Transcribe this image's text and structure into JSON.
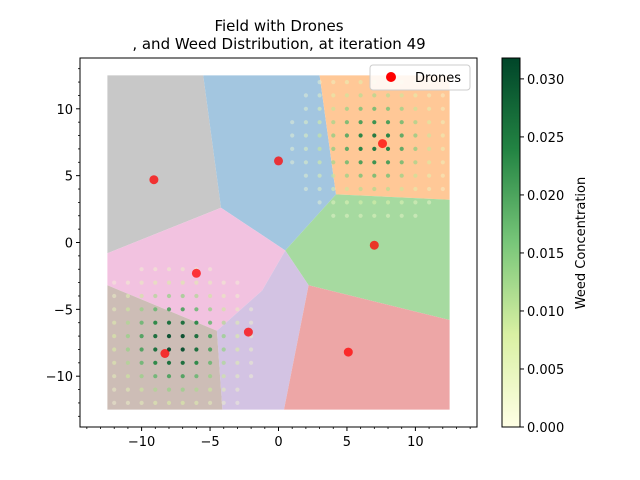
{
  "chart_data": {
    "type": "scatter",
    "title_line1": "Field with Drones",
    "title_line2": ", and Weed Distribution, at iteration 49",
    "xlabel": "",
    "ylabel": "",
    "xlim": [
      -14.5,
      14.5
    ],
    "ylim": [
      -13.8,
      13.8
    ],
    "x_ticks": [
      -10,
      -5,
      0,
      5,
      10
    ],
    "y_ticks": [
      -10,
      -5,
      0,
      5,
      10
    ],
    "grid": false,
    "legend": {
      "position": "top-right",
      "entries": [
        {
          "label": "Drones",
          "color": "#ff0000"
        }
      ]
    },
    "colorbar": {
      "label": "Weed Concentration",
      "range": [
        0.0,
        0.0318
      ],
      "ticks": [
        "0.000",
        "0.005",
        "0.010",
        "0.015",
        "0.020",
        "0.025",
        "0.030"
      ],
      "tick_values": [
        0.0,
        0.005,
        0.01,
        0.015,
        0.02,
        0.025,
        0.03
      ],
      "colormap": "Greens-like"
    },
    "field": {
      "x_range": [
        -12.5,
        12.5
      ],
      "y_range": [
        -12.5,
        12.5
      ]
    },
    "voronoi_cells": [
      {
        "color": "#c8c8c8",
        "polygon": [
          [
            -12.5,
            12.5
          ],
          [
            -5.5,
            12.5
          ],
          [
            -4.2,
            2.6
          ],
          [
            -12.5,
            -0.8
          ]
        ]
      },
      {
        "color": "#a3c6e0",
        "polygon": [
          [
            -5.5,
            12.5
          ],
          [
            3.0,
            12.5
          ],
          [
            4.2,
            3.6
          ],
          [
            0.5,
            -0.6
          ],
          [
            -4.2,
            2.6
          ]
        ]
      },
      {
        "color": "#ffc897",
        "polygon": [
          [
            3.0,
            12.5
          ],
          [
            12.5,
            12.5
          ],
          [
            12.5,
            3.2
          ],
          [
            4.2,
            3.6
          ]
        ]
      },
      {
        "color": "#a6daa0",
        "polygon": [
          [
            4.2,
            3.6
          ],
          [
            12.5,
            3.2
          ],
          [
            12.5,
            -5.8
          ],
          [
            2.2,
            -3.2
          ],
          [
            0.5,
            -0.6
          ]
        ]
      },
      {
        "color": "#f2c2e0",
        "polygon": [
          [
            -12.5,
            -0.8
          ],
          [
            -4.2,
            2.6
          ],
          [
            0.5,
            -0.6
          ],
          [
            -1.2,
            -3.6
          ],
          [
            -4.5,
            -6.6
          ],
          [
            -12.5,
            -3.2
          ]
        ]
      },
      {
        "color": "#d3c3e3",
        "polygon": [
          [
            0.5,
            -0.6
          ],
          [
            2.2,
            -3.2
          ],
          [
            0.4,
            -12.5
          ],
          [
            -4.1,
            -12.5
          ],
          [
            -4.5,
            -6.6
          ],
          [
            -1.2,
            -3.6
          ]
        ]
      },
      {
        "color": "#cdbdb6",
        "polygon": [
          [
            -12.5,
            -3.2
          ],
          [
            -4.5,
            -6.6
          ],
          [
            -4.1,
            -12.5
          ],
          [
            -12.5,
            -12.5
          ]
        ]
      },
      {
        "color": "#eda6a6",
        "polygon": [
          [
            2.2,
            -3.2
          ],
          [
            12.5,
            -5.8
          ],
          [
            12.5,
            -12.5
          ],
          [
            0.4,
            -12.5
          ]
        ]
      }
    ],
    "drones": [
      {
        "x": 0.0,
        "y": 6.1
      },
      {
        "x": 7.6,
        "y": 7.4
      },
      {
        "x": -9.1,
        "y": 4.7
      },
      {
        "x": 7.0,
        "y": -0.2
      },
      {
        "x": -6.0,
        "y": -2.3
      },
      {
        "x": -2.2,
        "y": -6.7
      },
      {
        "x": -8.3,
        "y": -8.3
      },
      {
        "x": 5.1,
        "y": -8.2
      }
    ],
    "weed_grid": {
      "spacing": 1.0,
      "x_start": -12.0,
      "x_end": 12.0,
      "y_start": -12.0,
      "y_end": 12.0
    },
    "weed_hotspots": [
      {
        "x": -7.5,
        "y": -7.5,
        "peak": 0.032,
        "sigma": 2.7
      },
      {
        "x": 7.0,
        "y": 7.5,
        "peak": 0.026,
        "sigma": 2.8
      }
    ]
  }
}
